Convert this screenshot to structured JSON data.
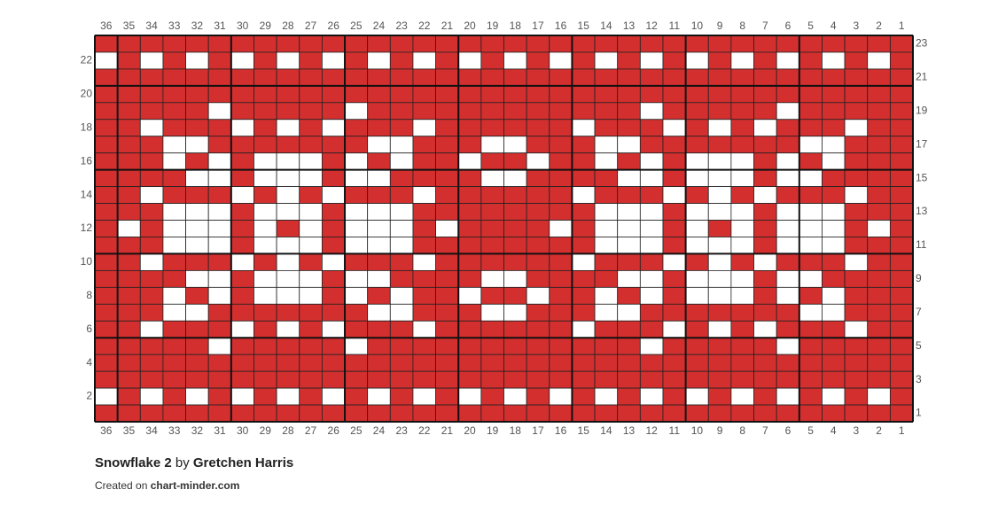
{
  "chart": {
    "title": "Snowflake 2",
    "by": "by",
    "author": "Gretchen Harris",
    "credit_prefix": "Created on",
    "credit_site": "chart-minder.com",
    "colors": {
      "main": "#d32f2f",
      "contrast": "#ffffff"
    },
    "column_labels": [
      36,
      35,
      34,
      33,
      32,
      31,
      30,
      29,
      28,
      27,
      26,
      25,
      24,
      23,
      22,
      21,
      20,
      19,
      18,
      17,
      16,
      15,
      14,
      13,
      12,
      11,
      10,
      9,
      8,
      7,
      6,
      5,
      4,
      3,
      2,
      1
    ],
    "row_labels_right": [
      23,
      21,
      19,
      17,
      15,
      13,
      11,
      9,
      7,
      5,
      3,
      1
    ],
    "row_labels_left": [
      22,
      20,
      18,
      16,
      14,
      12,
      10,
      8,
      6,
      4,
      2
    ],
    "contrast_cells_by_row": [
      [],
      [
        36,
        34,
        32,
        30,
        28,
        26,
        24,
        22,
        20,
        18,
        16,
        14,
        12,
        10,
        8,
        6,
        4,
        2
      ],
      [],
      [],
      [
        31,
        25,
        12,
        6
      ],
      [
        34,
        30,
        28,
        26,
        22,
        15,
        11,
        9,
        7,
        3
      ],
      [
        33,
        32,
        24,
        23,
        19,
        18,
        14,
        13,
        5,
        4
      ],
      [
        33,
        31,
        29,
        28,
        27,
        25,
        23,
        20,
        17,
        14,
        12,
        10,
        9,
        8,
        6,
        4
      ],
      [
        32,
        31,
        29,
        28,
        27,
        25,
        24,
        19,
        18,
        13,
        12,
        10,
        9,
        8,
        6,
        5
      ],
      [
        34,
        30,
        28,
        26,
        22,
        15,
        11,
        9,
        7,
        3
      ],
      [
        33,
        32,
        31,
        29,
        28,
        27,
        25,
        24,
        23,
        14,
        13,
        12,
        10,
        9,
        8,
        6,
        5,
        4
      ],
      [
        35,
        33,
        32,
        31,
        29,
        27,
        25,
        24,
        23,
        21,
        16,
        14,
        13,
        12,
        10,
        8,
        6,
        5,
        4,
        2
      ],
      [
        33,
        32,
        31,
        29,
        28,
        27,
        25,
        24,
        23,
        14,
        13,
        12,
        10,
        9,
        8,
        6,
        5,
        4
      ],
      [
        34,
        30,
        28,
        26,
        22,
        15,
        11,
        9,
        7,
        3
      ],
      [
        32,
        31,
        29,
        28,
        27,
        25,
        24,
        19,
        18,
        13,
        12,
        10,
        9,
        8,
        6,
        5
      ],
      [
        33,
        31,
        29,
        28,
        27,
        25,
        23,
        20,
        17,
        14,
        12,
        10,
        9,
        8,
        6,
        4
      ],
      [
        33,
        32,
        24,
        23,
        19,
        18,
        14,
        13,
        5,
        4
      ],
      [
        34,
        30,
        28,
        26,
        22,
        15,
        11,
        9,
        7,
        3
      ],
      [
        31,
        25,
        12,
        6
      ],
      [],
      [],
      [
        36,
        34,
        32,
        30,
        28,
        26,
        24,
        22,
        20,
        18,
        16,
        14,
        12,
        10,
        8,
        6,
        4,
        2
      ],
      []
    ]
  }
}
